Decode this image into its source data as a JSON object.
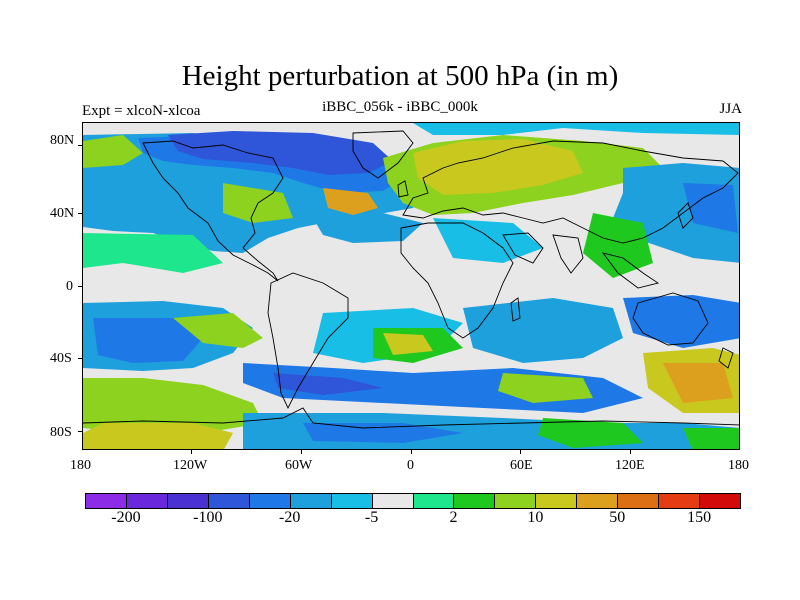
{
  "title": "Height perturbation at 500 hPa (in m)",
  "left_label": "Expt = xlcoN-xlcoa",
  "center_label": "iBBC_056k - iBBC_000k",
  "right_label": "JJA",
  "lat_ticks": [
    "80N",
    "40N",
    "0",
    "40S",
    "80S"
  ],
  "lon_ticks": [
    "180",
    "120W",
    "60W",
    "0",
    "60E",
    "120E",
    "180"
  ],
  "colorbar": {
    "colors": [
      "#8c2ce6",
      "#6a28dc",
      "#4a32d2",
      "#2f55d9",
      "#1e78e6",
      "#1ea0dc",
      "#18bee6",
      "#e8e8e8",
      "#1ee68c",
      "#1ec81e",
      "#8cd21e",
      "#c8c81e",
      "#dca01e",
      "#dc6e14",
      "#e63c14",
      "#d20a0a"
    ],
    "labels": [
      "-200",
      "-100",
      "-20",
      "-5",
      "2",
      "10",
      "50",
      "150"
    ]
  },
  "map": {
    "projection": "cylindrical-equidistant",
    "lon_range": [
      -180,
      180
    ],
    "lat_range": [
      -90,
      90
    ],
    "background_color": "#e8e8e8",
    "coastline_color": "#000000"
  }
}
